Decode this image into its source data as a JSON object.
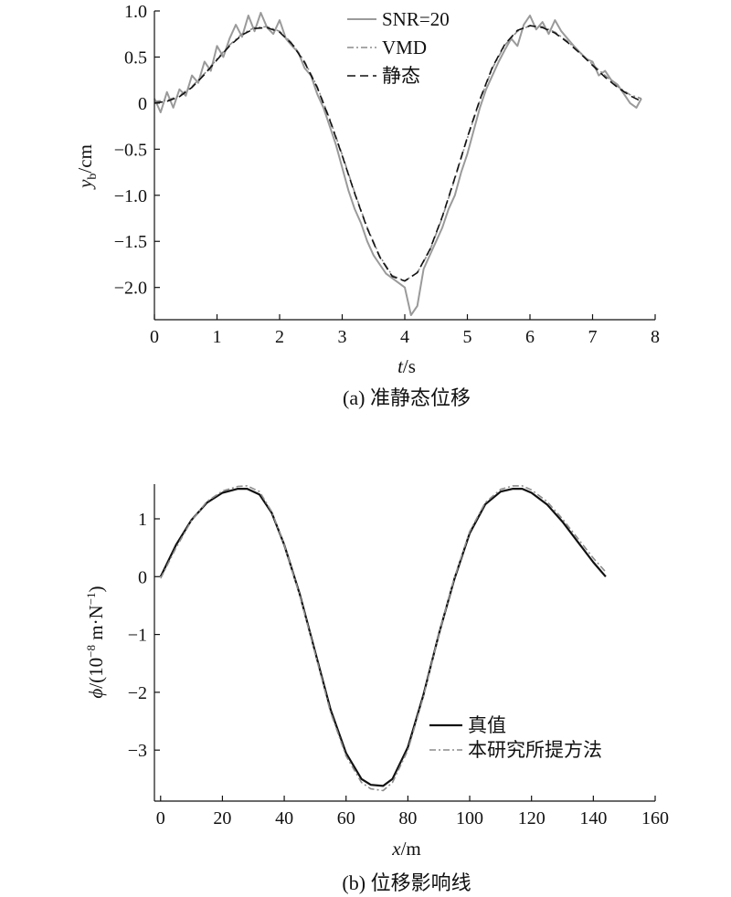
{
  "chart_data": [
    {
      "type": "line",
      "caption": "(a) 准静态位移",
      "xlabel_italic": "t",
      "xlabel_rest": "/s",
      "ylabel_italic": "y",
      "ylabel_sub": "b",
      "ylabel_rest": "/cm",
      "xlim": [
        0,
        8
      ],
      "ylim": [
        -2.35,
        1.0
      ],
      "xticks": [
        0,
        1,
        2,
        3,
        4,
        5,
        6,
        7,
        8
      ],
      "xtick_labels": [
        "0",
        "1",
        "2",
        "3",
        "4",
        "5",
        "6",
        "7",
        "8"
      ],
      "yticks": [
        1.0,
        0.5,
        0,
        -0.5,
        -1.0,
        -1.5,
        -2.0
      ],
      "ytick_labels": [
        "1.0",
        "0.5",
        "0",
        "−0.5",
        "−1.0",
        "−1.5",
        "−2.0"
      ],
      "legend_position": "top-right",
      "series": [
        {
          "name": "SNR=20",
          "style": "solid",
          "color": "#9a9a9a",
          "x": [
            0.0,
            0.1,
            0.2,
            0.3,
            0.4,
            0.5,
            0.6,
            0.7,
            0.8,
            0.9,
            1.0,
            1.1,
            1.2,
            1.3,
            1.4,
            1.5,
            1.6,
            1.7,
            1.8,
            1.9,
            2.0,
            2.1,
            2.2,
            2.3,
            2.4,
            2.5,
            2.6,
            2.7,
            2.8,
            2.9,
            3.0,
            3.1,
            3.2,
            3.3,
            3.4,
            3.5,
            3.6,
            3.7,
            3.8,
            3.9,
            4.0,
            4.1,
            4.2,
            4.3,
            4.4,
            4.5,
            4.6,
            4.7,
            4.8,
            4.9,
            5.0,
            5.1,
            5.2,
            5.3,
            5.4,
            5.5,
            5.6,
            5.7,
            5.8,
            5.9,
            6.0,
            6.1,
            6.2,
            6.3,
            6.4,
            6.5,
            6.6,
            6.7,
            6.8,
            6.9,
            7.0,
            7.1,
            7.2,
            7.3,
            7.4,
            7.5,
            7.6,
            7.7,
            7.78
          ],
          "y": [
            0.05,
            -0.1,
            0.12,
            -0.05,
            0.15,
            0.08,
            0.3,
            0.22,
            0.45,
            0.35,
            0.62,
            0.5,
            0.7,
            0.85,
            0.72,
            0.95,
            0.78,
            0.98,
            0.82,
            0.75,
            0.9,
            0.7,
            0.62,
            0.55,
            0.38,
            0.3,
            0.1,
            -0.05,
            -0.25,
            -0.45,
            -0.7,
            -0.95,
            -1.15,
            -1.3,
            -1.5,
            -1.65,
            -1.75,
            -1.85,
            -1.9,
            -1.95,
            -2.0,
            -2.3,
            -2.2,
            -1.8,
            -1.65,
            -1.5,
            -1.35,
            -1.15,
            -1.0,
            -0.75,
            -0.55,
            -0.3,
            -0.05,
            0.15,
            0.3,
            0.45,
            0.58,
            0.7,
            0.62,
            0.85,
            0.95,
            0.8,
            0.88,
            0.75,
            0.9,
            0.78,
            0.7,
            0.62,
            0.55,
            0.48,
            0.45,
            0.3,
            0.35,
            0.25,
            0.2,
            0.1,
            0.0,
            -0.05,
            0.05
          ]
        },
        {
          "name": "VMD",
          "style": "dashdot",
          "color": "#8c8c8c",
          "x": [
            0.0,
            0.2,
            0.4,
            0.6,
            0.8,
            1.0,
            1.2,
            1.4,
            1.6,
            1.8,
            2.0,
            2.2,
            2.4,
            2.6,
            2.8,
            3.0,
            3.2,
            3.4,
            3.6,
            3.8,
            4.0,
            4.2,
            4.4,
            4.6,
            4.8,
            5.0,
            5.2,
            5.4,
            5.6,
            5.8,
            6.0,
            6.2,
            6.4,
            6.6,
            6.8,
            7.0,
            7.2,
            7.4,
            7.6,
            7.78
          ],
          "y": [
            0.02,
            0.03,
            0.08,
            0.18,
            0.32,
            0.48,
            0.63,
            0.75,
            0.82,
            0.83,
            0.78,
            0.65,
            0.45,
            0.18,
            -0.17,
            -0.56,
            -0.97,
            -1.35,
            -1.66,
            -1.87,
            -1.93,
            -1.84,
            -1.6,
            -1.24,
            -0.82,
            -0.38,
            0.03,
            0.38,
            0.63,
            0.78,
            0.84,
            0.83,
            0.77,
            0.67,
            0.55,
            0.42,
            0.3,
            0.18,
            0.09,
            0.05
          ]
        },
        {
          "name": "静态",
          "style": "dashed",
          "color": "#111111",
          "x": [
            0.0,
            0.2,
            0.4,
            0.6,
            0.8,
            1.0,
            1.2,
            1.4,
            1.6,
            1.8,
            2.0,
            2.2,
            2.4,
            2.6,
            2.8,
            3.0,
            3.2,
            3.4,
            3.6,
            3.8,
            4.0,
            4.2,
            4.4,
            4.6,
            4.8,
            5.0,
            5.2,
            5.4,
            5.6,
            5.8,
            6.0,
            6.2,
            6.4,
            6.6,
            6.8,
            7.0,
            7.2,
            7.4,
            7.6,
            7.78
          ],
          "y": [
            0.0,
            0.02,
            0.07,
            0.17,
            0.31,
            0.47,
            0.62,
            0.74,
            0.81,
            0.82,
            0.77,
            0.64,
            0.44,
            0.17,
            -0.18,
            -0.57,
            -0.98,
            -1.36,
            -1.67,
            -1.88,
            -1.93,
            -1.84,
            -1.59,
            -1.23,
            -0.81,
            -0.37,
            0.04,
            0.39,
            0.64,
            0.79,
            0.84,
            0.82,
            0.76,
            0.66,
            0.54,
            0.41,
            0.28,
            0.17,
            0.08,
            0.02
          ]
        }
      ]
    },
    {
      "type": "line",
      "caption": "(b) 位移影响线",
      "xlabel_italic": "x",
      "xlabel_rest": "/m",
      "ylabel_italic": "ϕ",
      "ylabel_rest": "/(10",
      "ylabel_sup1": "−8",
      "ylabel_rest2": " m·N",
      "ylabel_sup2": "−1",
      "ylabel_rest3": ")",
      "xlim": [
        -2,
        160
      ],
      "ylim": [
        -3.85,
        1.6
      ],
      "xticks": [
        0,
        20,
        40,
        60,
        80,
        100,
        120,
        140,
        160
      ],
      "xtick_labels": [
        "0",
        "20",
        "40",
        "60",
        "80",
        "100",
        "120",
        "140",
        "160"
      ],
      "yticks": [
        1,
        0,
        -1,
        -2,
        -3
      ],
      "ytick_labels": [
        "1",
        "0",
        "−1",
        "−2",
        "−3"
      ],
      "legend_position": "bottom-right",
      "series": [
        {
          "name": "真值",
          "style": "solid",
          "color": "#111111",
          "x": [
            0,
            5,
            10,
            15,
            20,
            25,
            28,
            32,
            36,
            40,
            45,
            50,
            55,
            60,
            65,
            68,
            72,
            75,
            80,
            85,
            90,
            95,
            100,
            105,
            110,
            114,
            117,
            120,
            125,
            130,
            135,
            140,
            144
          ],
          "y": [
            0.0,
            0.55,
            0.98,
            1.28,
            1.45,
            1.52,
            1.52,
            1.42,
            1.1,
            0.55,
            -0.3,
            -1.3,
            -2.3,
            -3.05,
            -3.5,
            -3.6,
            -3.62,
            -3.5,
            -2.95,
            -2.05,
            -1.0,
            -0.05,
            0.75,
            1.25,
            1.47,
            1.52,
            1.52,
            1.45,
            1.25,
            0.95,
            0.6,
            0.25,
            0.0
          ]
        },
        {
          "name": "本研究所提方法",
          "style": "dashdot",
          "color": "#8c8c8c",
          "x": [
            0,
            5,
            10,
            15,
            20,
            25,
            28,
            32,
            36,
            40,
            45,
            50,
            55,
            60,
            65,
            68,
            72,
            75,
            80,
            85,
            90,
            95,
            100,
            105,
            110,
            114,
            117,
            120,
            125,
            130,
            135,
            140,
            144
          ],
          "y": [
            -0.03,
            0.5,
            0.97,
            1.3,
            1.48,
            1.56,
            1.57,
            1.47,
            1.12,
            0.55,
            -0.32,
            -1.33,
            -2.35,
            -3.1,
            -3.56,
            -3.67,
            -3.7,
            -3.56,
            -3.0,
            -2.08,
            -1.0,
            -0.03,
            0.78,
            1.28,
            1.51,
            1.57,
            1.57,
            1.5,
            1.3,
            1.0,
            0.66,
            0.32,
            0.08
          ]
        }
      ]
    }
  ]
}
